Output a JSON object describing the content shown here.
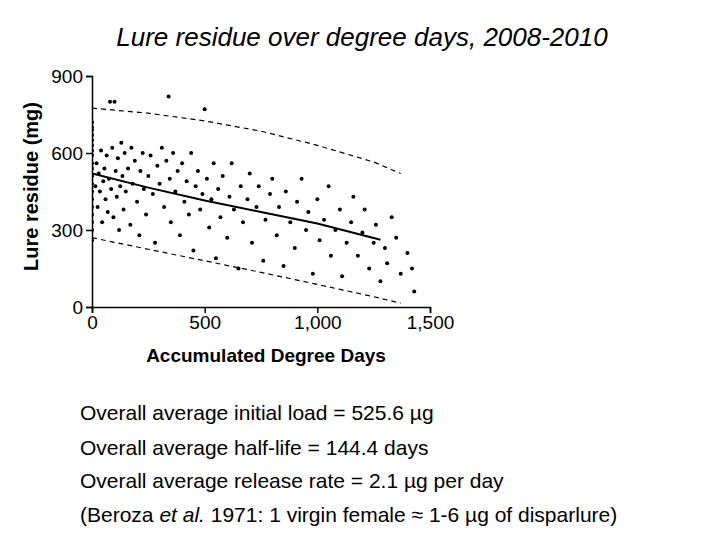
{
  "chart_data": {
    "type": "scatter",
    "title": "Lure residue over degree days, 2008-2010",
    "x_label": "Accumulated Degree Days",
    "y_label": "Lure residue (mg)",
    "xlim": [
      0,
      1500
    ],
    "ylim": [
      0,
      900
    ],
    "xticks": [
      0,
      500,
      {
        "value": 1000,
        "label": "1,000"
      },
      {
        "value": 1500,
        "label": "1,500"
      }
    ],
    "yticks": [
      0,
      300,
      600,
      900
    ],
    "grid": false,
    "series": [
      {
        "type": "scatter",
        "color": "#000000",
        "marker": "circle",
        "x": [
          0,
          0,
          0,
          0,
          0,
          0,
          0,
          0,
          0,
          0,
          0,
          0,
          0,
          0,
          0,
          0,
          0,
          0,
          0,
          15,
          20,
          25,
          30,
          35,
          40,
          45,
          50,
          55,
          60,
          65,
          70,
          75,
          80,
          85,
          90,
          95,
          100,
          105,
          110,
          115,
          120,
          125,
          130,
          135,
          140,
          145,
          150,
          160,
          170,
          175,
          180,
          190,
          200,
          210,
          215,
          225,
          230,
          240,
          250,
          260,
          270,
          280,
          290,
          300,
          310,
          320,
          330,
          340,
          345,
          350,
          360,
          370,
          380,
          390,
          400,
          410,
          420,
          430,
          440,
          450,
          460,
          470,
          480,
          490,
          500,
          510,
          520,
          530,
          540,
          550,
          560,
          570,
          580,
          600,
          610,
          620,
          630,
          650,
          660,
          670,
          690,
          700,
          710,
          730,
          740,
          760,
          770,
          790,
          800,
          820,
          830,
          850,
          860,
          880,
          900,
          910,
          930,
          950,
          960,
          980,
          1000,
          1010,
          1030,
          1050,
          1060,
          1080,
          1100,
          1110,
          1130,
          1150,
          1160,
          1180,
          1200,
          1210,
          1230,
          1250,
          1260,
          1280,
          1300,
          1310,
          1330,
          1350,
          1370,
          1400,
          1420,
          1430
        ],
        "values": [
          720,
          700,
          690,
          670,
          650,
          630,
          610,
          590,
          560,
          540,
          510,
          480,
          450,
          420,
          390,
          360,
          330,
          300,
          260,
          470,
          560,
          390,
          520,
          450,
          610,
          330,
          490,
          540,
          420,
          590,
          370,
          500,
          800,
          460,
          620,
          350,
          800,
          530,
          430,
          580,
          300,
          470,
          640,
          510,
          380,
          600,
          450,
          540,
          320,
          620,
          480,
          570,
          410,
          280,
          530,
          600,
          460,
          360,
          510,
          590,
          440,
          250,
          550,
          480,
          620,
          390,
          570,
          820,
          500,
          330,
          600,
          450,
          530,
          280,
          560,
          410,
          490,
          360,
          600,
          220,
          470,
          530,
          380,
          440,
          770,
          500,
          310,
          420,
          560,
          190,
          460,
          350,
          510,
          270,
          430,
          560,
          380,
          150,
          470,
          330,
          420,
          520,
          250,
          390,
          470,
          180,
          340,
          440,
          500,
          280,
          390,
          160,
          450,
          330,
          230,
          410,
          500,
          300,
          370,
          130,
          420,
          260,
          340,
          470,
          200,
          300,
          380,
          120,
          250,
          330,
          430,
          200,
          290,
          380,
          150,
          250,
          320,
          100,
          230,
          170,
          350,
          270,
          130,
          210,
          150,
          60
        ]
      },
      {
        "type": "line",
        "color": "#000000",
        "line_style": "solid",
        "x": [
          0,
          250,
          500,
          750,
          1000,
          1280
        ],
        "values": [
          520,
          465,
          415,
          370,
          325,
          262
        ]
      },
      {
        "type": "line",
        "color": "#000000",
        "line_style": "dashed",
        "x": [
          0,
          250,
          500,
          750,
          1000,
          1250,
          1370
        ],
        "values": [
          775,
          755,
          725,
          685,
          630,
          565,
          520
        ]
      },
      {
        "type": "line",
        "color": "#000000",
        "line_style": "dashed",
        "x": [
          0,
          250,
          500,
          750,
          1000,
          1250,
          1370
        ],
        "values": [
          270,
          225,
          180,
          135,
          88,
          40,
          15
        ]
      }
    ],
    "annotations": [
      [
        "Overall average initial load = 525.6 µg"
      ],
      [
        "Overall average half-life = 144.4 days"
      ],
      [
        "Overall average release rate = 2.1 µg per day"
      ],
      [
        "(Beroza ",
        "et al.",
        " 1971: 1 virgin female ≈ 1-6 µg of disparlure)"
      ]
    ]
  }
}
